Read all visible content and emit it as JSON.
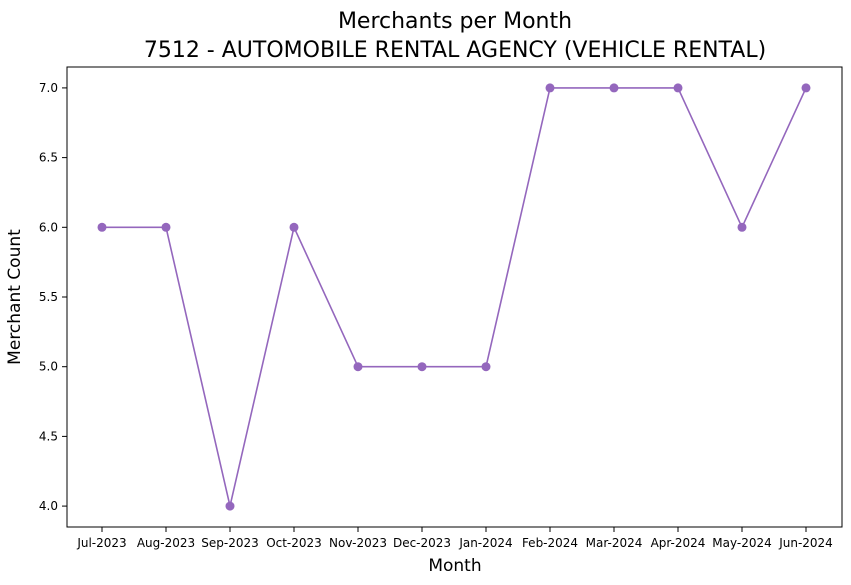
{
  "chart_data": {
    "type": "line",
    "title_line1": "Merchants per Month",
    "title_line2": "7512 - AUTOMOBILE RENTAL AGENCY (VEHICLE RENTAL)",
    "xlabel": "Month",
    "ylabel": "Merchant Count",
    "categories": [
      "Jul-2023",
      "Aug-2023",
      "Sep-2023",
      "Oct-2023",
      "Nov-2023",
      "Dec-2023",
      "Jan-2024",
      "Feb-2024",
      "Mar-2024",
      "Apr-2024",
      "May-2024",
      "Jun-2024"
    ],
    "series": [
      {
        "values": [
          6,
          6,
          4,
          6,
          5,
          5,
          5,
          7,
          7,
          7,
          6,
          7
        ],
        "color": "#9467bd",
        "marker": "circle"
      }
    ],
    "ylim": [
      3.85,
      7.15
    ],
    "yticks": [
      {
        "value": 4.0,
        "label": "4.0"
      },
      {
        "value": 4.5,
        "label": "4.5"
      },
      {
        "value": 5.0,
        "label": "5.0"
      },
      {
        "value": 5.5,
        "label": "5.5"
      },
      {
        "value": 6.0,
        "label": "6.0"
      },
      {
        "value": 6.5,
        "label": "6.5"
      },
      {
        "value": 7.0,
        "label": "7.0"
      }
    ],
    "grid": false,
    "legend": "none"
  }
}
